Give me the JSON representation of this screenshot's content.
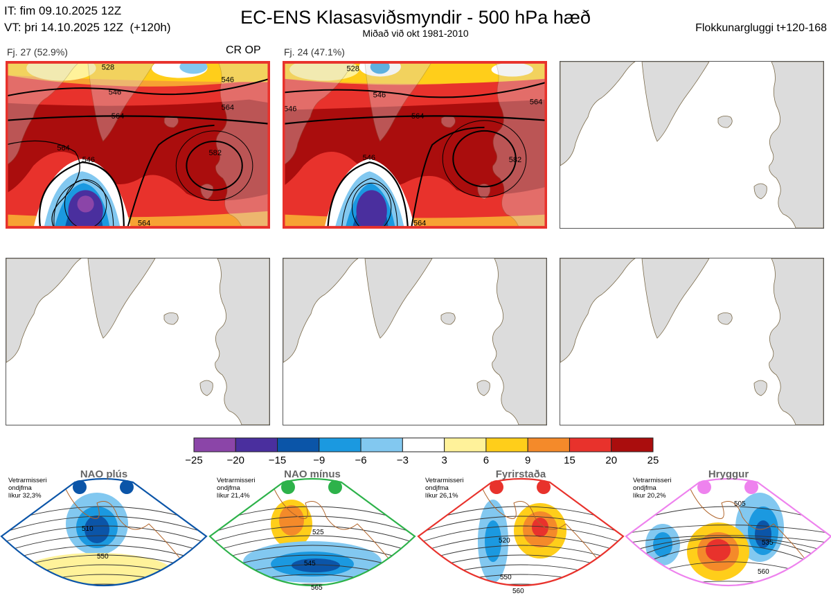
{
  "header": {
    "init_time": "IT: fim 09.10.2025 12Z",
    "valid_time": "VT: þri 14.10.2025 12Z  (+120h)",
    "title": "EC-ENS Klasasviðsmyndir - 500 hPa hæð",
    "subtitle": "Miðað við okt 1981-2010",
    "window": "Flokkunargluggi t+120-168"
  },
  "panels": [
    {
      "label": "Fj. 27 (52.9%)",
      "tag": "CR OP",
      "contours": [
        "528",
        "546",
        "546",
        "564",
        "564",
        "564",
        "546",
        "582",
        "564"
      ]
    },
    {
      "label": "Fj. 24 (47.1%)",
      "tag": "",
      "contours": [
        "528",
        "546",
        "546",
        "564",
        "564",
        "546",
        "582",
        "564"
      ]
    }
  ],
  "colorbar": {
    "ticks": [
      "−25",
      "−20",
      "−15",
      "−9",
      "−6",
      "−3",
      "3",
      "6",
      "9",
      "15",
      "20",
      "25"
    ],
    "colors": [
      "#8b45a8",
      "#4a2f9e",
      "#0b55a8",
      "#1b99e0",
      "#82c8f0",
      "#ffffff",
      "#fff29a",
      "#ffce1a",
      "#f48a2a",
      "#e8322c",
      "#aa0d0d"
    ]
  },
  "regimes": [
    {
      "name": "NAO plús",
      "season": "Vetrarmisseri",
      "subject": "ondjfma",
      "probability": "líkur 32,3%",
      "color": "#0b55a8",
      "contours": [
        "510",
        "550"
      ]
    },
    {
      "name": "NAO mínus",
      "season": "Vetrarmisseri",
      "subject": "ondjfma",
      "probability": "líkur 21,4%",
      "color": "#2db24a",
      "contours": [
        "525",
        "545",
        "565"
      ]
    },
    {
      "name": "Fyrirstaða",
      "season": "Vetrarmisseri",
      "subject": "ondjfma",
      "probability": "líkur 26,1%",
      "color": "#e8322c",
      "contours": [
        "520",
        "550",
        "560"
      ]
    },
    {
      "name": "Hryggur",
      "season": "Vetrarmisseri",
      "subject": "ondjfma",
      "probability": "líkur 20,2%",
      "color": "#ee82ee",
      "contours": [
        "505",
        "535",
        "560"
      ]
    }
  ]
}
